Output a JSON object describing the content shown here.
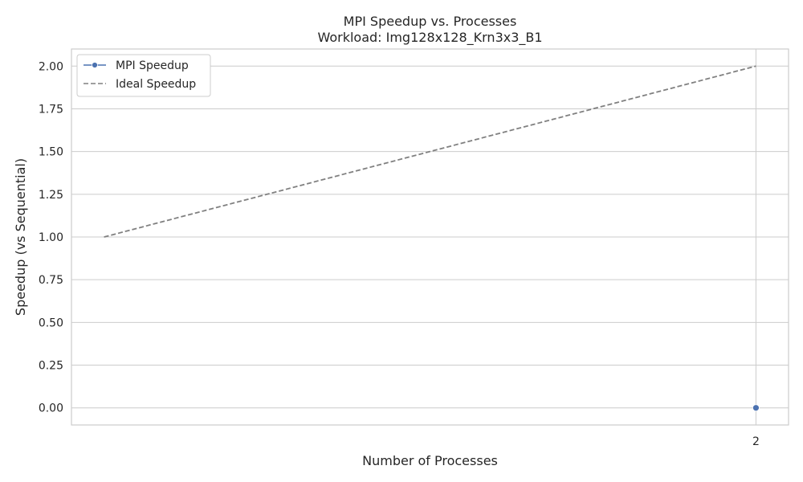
{
  "chart_data": {
    "type": "line",
    "title": "MPI Speedup vs. Processes",
    "subtitle": "Workload: Img128x128_Krn3x3_B1",
    "xlabel": "Number of Processes",
    "ylabel": "Speedup (vs Sequential)",
    "xlim": [
      0.95,
      2.05
    ],
    "ylim": [
      -0.1,
      2.1
    ],
    "x_ticks": [
      2
    ],
    "y_ticks": [
      0.0,
      0.25,
      0.5,
      0.75,
      1.0,
      1.25,
      1.5,
      1.75,
      2.0
    ],
    "y_tick_labels": [
      "0.00",
      "0.25",
      "0.50",
      "0.75",
      "1.00",
      "1.25",
      "1.50",
      "1.75",
      "2.00"
    ],
    "grid": true,
    "legend_position": "top-left",
    "series": [
      {
        "name": "MPI Speedup",
        "style": "solid-marker",
        "color": "#4c72b0",
        "x": [
          2
        ],
        "y": [
          0.0
        ]
      },
      {
        "name": "Ideal Speedup",
        "style": "dashed",
        "color": "#808080",
        "x": [
          1,
          2
        ],
        "y": [
          1.0,
          2.0
        ]
      }
    ]
  }
}
